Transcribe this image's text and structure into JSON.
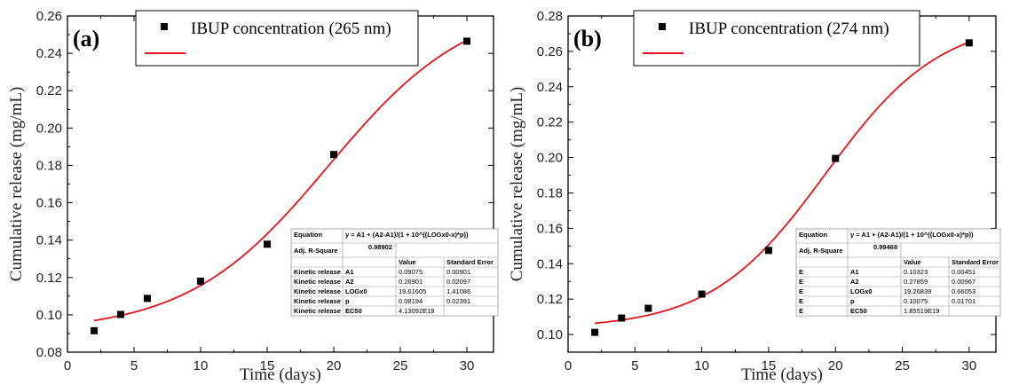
{
  "colors": {
    "fit": "#e8141a",
    "points": "#000000",
    "axis": "#000000",
    "table_border": "#9a9a9a"
  },
  "chart_data": [
    {
      "type": "scatter",
      "panel_label": "(a)",
      "xlabel": "Time (days)",
      "ylabel": "Cumulative release (mg/mL)",
      "xlim": [
        0,
        32
      ],
      "ylim": [
        0.08,
        0.26
      ],
      "xticks": [
        0,
        5,
        10,
        15,
        20,
        25,
        30
      ],
      "yticks": [
        "0.08",
        "0.10",
        "0.12",
        "0.14",
        "0.16",
        "0.18",
        "0.20",
        "0.22",
        "0.24",
        "0.26"
      ],
      "legend": {
        "marker_label": "IBUP concentration (265 nm)",
        "line_label": "",
        "location": "top-center"
      },
      "series": [
        {
          "name": "IBUP concentration (265 nm)",
          "kind": "points",
          "x": [
            2,
            4,
            6,
            10,
            15,
            20,
            30
          ],
          "y": [
            0.0915,
            0.1002,
            0.1088,
            0.118,
            0.1378,
            0.1858,
            0.2465
          ]
        },
        {
          "name": "fit",
          "kind": "logistic_fit",
          "params": {
            "A1": 0.09075,
            "A2": 0.26901,
            "LOGx0": 19.61605,
            "p": 0.08194
          },
          "x_range": [
            2,
            30
          ]
        }
      ],
      "fit_table": {
        "equation_label": "Equation",
        "equation": "y = A1 + (A2-A1)/(1 + 10^((LOGx0-x)*p))",
        "adj_r_label": "Adj. R-Square",
        "adj_r": "0.98902",
        "col_value": "Value",
        "col_error": "Standard Error",
        "rows": [
          [
            "Kinetic release",
            "A1",
            "0.09075",
            "0.00901"
          ],
          [
            "Kinetic release",
            "A2",
            "0.26901",
            "0.02097"
          ],
          [
            "Kinetic release",
            "LOGx0",
            "19.61605",
            "1.41086"
          ],
          [
            "Kinetic release",
            "p",
            "0.08194",
            "0.02391"
          ],
          [
            "Kinetic release",
            "EC50",
            "4.13092E19",
            ""
          ]
        ]
      }
    },
    {
      "type": "scatter",
      "panel_label": "(b)",
      "xlabel": "Time (days)",
      "ylabel": "Cumulative release (mg/mL)",
      "xlim": [
        0,
        32
      ],
      "ylim": [
        0.09,
        0.28
      ],
      "xticks": [
        0,
        5,
        10,
        15,
        20,
        25,
        30
      ],
      "yticks": [
        "0.10",
        "0.12",
        "0.14",
        "0.16",
        "0.18",
        "0.20",
        "0.22",
        "0.24",
        "0.26",
        "0.28"
      ],
      "legend": {
        "marker_label": "IBUP concentration (274 nm)",
        "line_label": "",
        "location": "top-center"
      },
      "series": [
        {
          "name": "IBUP concentration (274 nm)",
          "kind": "points",
          "x": [
            2,
            4,
            6,
            10,
            15,
            20,
            30
          ],
          "y": [
            0.1012,
            0.1093,
            0.1148,
            0.1228,
            0.1475,
            0.1995,
            0.2648
          ]
        },
        {
          "name": "fit",
          "kind": "logistic_fit",
          "params": {
            "A1": 0.10323,
            "A2": 0.27859,
            "LOGx0": 19.26839,
            "p": 0.10075
          },
          "x_range": [
            2,
            30
          ]
        }
      ],
      "fit_table": {
        "equation_label": "Equation",
        "equation": "y = A1 + (A2-A1)/(1 + 10^((LOGx0-x)*p))",
        "adj_r_label": "Adj. R-Square",
        "adj_r": "0.99468",
        "col_value": "Value",
        "col_error": "Standard Error",
        "rows": [
          [
            "E",
            "A1",
            "0.10323",
            "0.00451"
          ],
          [
            "E",
            "A2",
            "0.27859",
            "0.00967"
          ],
          [
            "E",
            "LOGx0",
            "19.26839",
            "0.66053"
          ],
          [
            "E",
            "p",
            "0.10075",
            "0.01701"
          ],
          [
            "E",
            "EC50",
            "1.85519E19",
            ""
          ]
        ]
      }
    }
  ]
}
